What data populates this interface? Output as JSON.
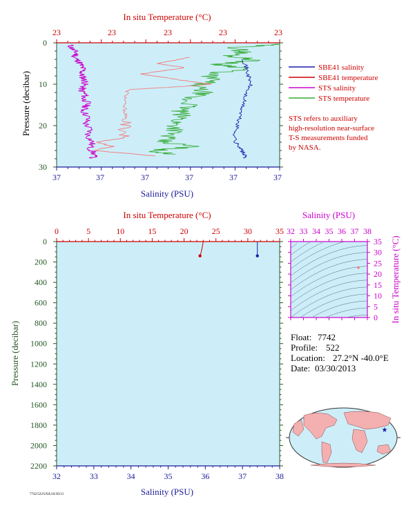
{
  "figure_label": "7742/522/USA 03/30/13",
  "top_panel": {
    "temp_axis_label": "In situ Temperature (°C)",
    "temp_ticks": [
      "23",
      "23",
      "23",
      "23",
      "23"
    ],
    "sal_axis_label": "Salinity (PSU)",
    "sal_ticks": [
      "37",
      "37",
      "37",
      "37",
      "37"
    ],
    "pressure_axis_label": "Pressure (decibar)",
    "pressure_ticks": [
      "0",
      "10",
      "20",
      "30"
    ]
  },
  "legend": {
    "items": [
      {
        "label": "SBE41 salinity",
        "color": "#1a1aaa"
      },
      {
        "label": "SBE41 temperature",
        "color": "#cc0000"
      },
      {
        "label": "STS salinity",
        "color": "#cc00cc"
      },
      {
        "label": "STS temperature",
        "color": "#33aa33"
      }
    ],
    "note_lines": [
      "STS refers to auxiliary",
      "high-resolution near-surface",
      "T-S measurements funded",
      "by NASA."
    ]
  },
  "bottom_panel": {
    "temp_axis_label": "In situ Temperature (°C)",
    "temp_ticks": [
      "0",
      "5",
      "10",
      "15",
      "20",
      "25",
      "30",
      "35"
    ],
    "sal_axis_label": "Salinity (PSU)",
    "sal_ticks": [
      "32",
      "33",
      "34",
      "35",
      "36",
      "37",
      "38"
    ],
    "pressure_axis_label": "Pressure (decibar)",
    "pressure_ticks": [
      "0",
      "200",
      "400",
      "600",
      "800",
      "1000",
      "1200",
      "1400",
      "1600",
      "1800",
      "2000",
      "2200"
    ]
  },
  "ts_panel": {
    "sal_axis_label": "Salinity (PSU)",
    "sal_ticks": [
      "32",
      "33",
      "34",
      "35",
      "36",
      "37",
      "38"
    ],
    "temp_axis_label": "In situ Temperature (°C)",
    "temp_ticks": [
      "0",
      "5",
      "10",
      "15",
      "20",
      "25",
      "30",
      "35"
    ]
  },
  "float_info": {
    "float_label": "Float:",
    "float_value": "7742",
    "profile_label": "Profile:",
    "profile_value": "522",
    "location_label": "Location:",
    "location_value": "27.2°N  -40.0°E",
    "date_label": "Date:",
    "date_value": "03/30/2013"
  },
  "colors": {
    "plot_bg": "#cdeef9",
    "temp_axis": "#cc0000",
    "sal_axis": "#1a1a99",
    "pressure_axis": "#225522",
    "ts_axis": "#cc00cc",
    "sbe_sal": "#1a1aaa",
    "sbe_temp": "#cc0000",
    "sts_sal": "#cc00cc",
    "sts_temp": "#33aa33",
    "land": "#f4b0b0",
    "ocean": "#cdeef9",
    "marker": "#1a1aaa"
  },
  "chart_data": [
    {
      "type": "line",
      "title": "",
      "xlabel": "Salinity (PSU)",
      "x2label": "In situ Temperature (°C)",
      "ylabel": "Pressure (decibar)",
      "ylim": [
        0,
        30
      ],
      "y_inverted": true,
      "series": [
        {
          "name": "STS salinity",
          "x_frac": [
            0.06,
            0.07,
            0.09,
            0.08,
            0.1,
            0.11,
            0.12,
            0.11,
            0.12,
            0.13,
            0.12,
            0.11,
            0.13,
            0.12,
            0.14,
            0.13,
            0.12,
            0.14,
            0.13,
            0.15,
            0.14,
            0.16,
            0.15,
            0.17,
            0.16
          ],
          "y": [
            0.5,
            1.5,
            2.5,
            3.5,
            4.5,
            5.5,
            6.5,
            7.5,
            8.5,
            9.5,
            10.5,
            11.5,
            12.5,
            13.5,
            14.5,
            15.5,
            16.5,
            18,
            19.5,
            21,
            22.5,
            24,
            25.5,
            27,
            28
          ]
        },
        {
          "name": "STS temperature",
          "x_frac": [
            0.99,
            0.95,
            0.85,
            0.8,
            0.75,
            0.72,
            0.68,
            0.65,
            0.62,
            0.6,
            0.58,
            0.55,
            0.53,
            0.52,
            0.5,
            0.49,
            0.48,
            0.47,
            0.5,
            0.45,
            0.42
          ],
          "y": [
            0.5,
            1,
            2,
            3,
            4,
            5,
            6,
            7,
            8,
            9,
            10,
            11,
            12,
            13,
            14,
            15,
            16,
            18,
            20,
            22,
            24
          ]
        },
        {
          "name": "SBE41 salinity",
          "x_frac": [
            0.84,
            0.85,
            0.86,
            0.87,
            0.85,
            0.84,
            0.83,
            0.82,
            0.81,
            0.8,
            0.8,
            0.82,
            0.83,
            0.84,
            0.85
          ],
          "y": [
            4,
            6,
            8,
            10,
            12,
            14,
            16,
            18,
            20,
            22,
            24,
            25,
            26,
            27,
            28
          ]
        }
      ]
    },
    {
      "type": "line",
      "title": "",
      "xlabel": "Salinity (PSU)",
      "x2label": "In situ Temperature (°C)",
      "ylabel": "Pressure (decibar)",
      "xlim_salinity": [
        32,
        38
      ],
      "xlim_temperature": [
        0,
        35
      ],
      "ylim": [
        0,
        2200
      ],
      "y_inverted": true,
      "series": [
        {
          "name": "SBE41 temperature",
          "x": [
            23.0,
            22.9,
            22.7,
            22.5
          ],
          "y": [
            0,
            40,
            100,
            140
          ]
        },
        {
          "name": "SBE41 salinity",
          "x": [
            37.4,
            37.4,
            37.4,
            37.4
          ],
          "y": [
            0,
            40,
            100,
            140
          ]
        }
      ]
    },
    {
      "type": "scatter",
      "title": "",
      "xlabel": "Salinity (PSU)",
      "ylabel": "In situ Temperature (°C)",
      "xlim": [
        32,
        38
      ],
      "ylim": [
        0,
        35
      ],
      "series": [
        {
          "name": "SBE41",
          "x": [
            37.3
          ],
          "y": [
            23.0
          ]
        }
      ]
    }
  ]
}
